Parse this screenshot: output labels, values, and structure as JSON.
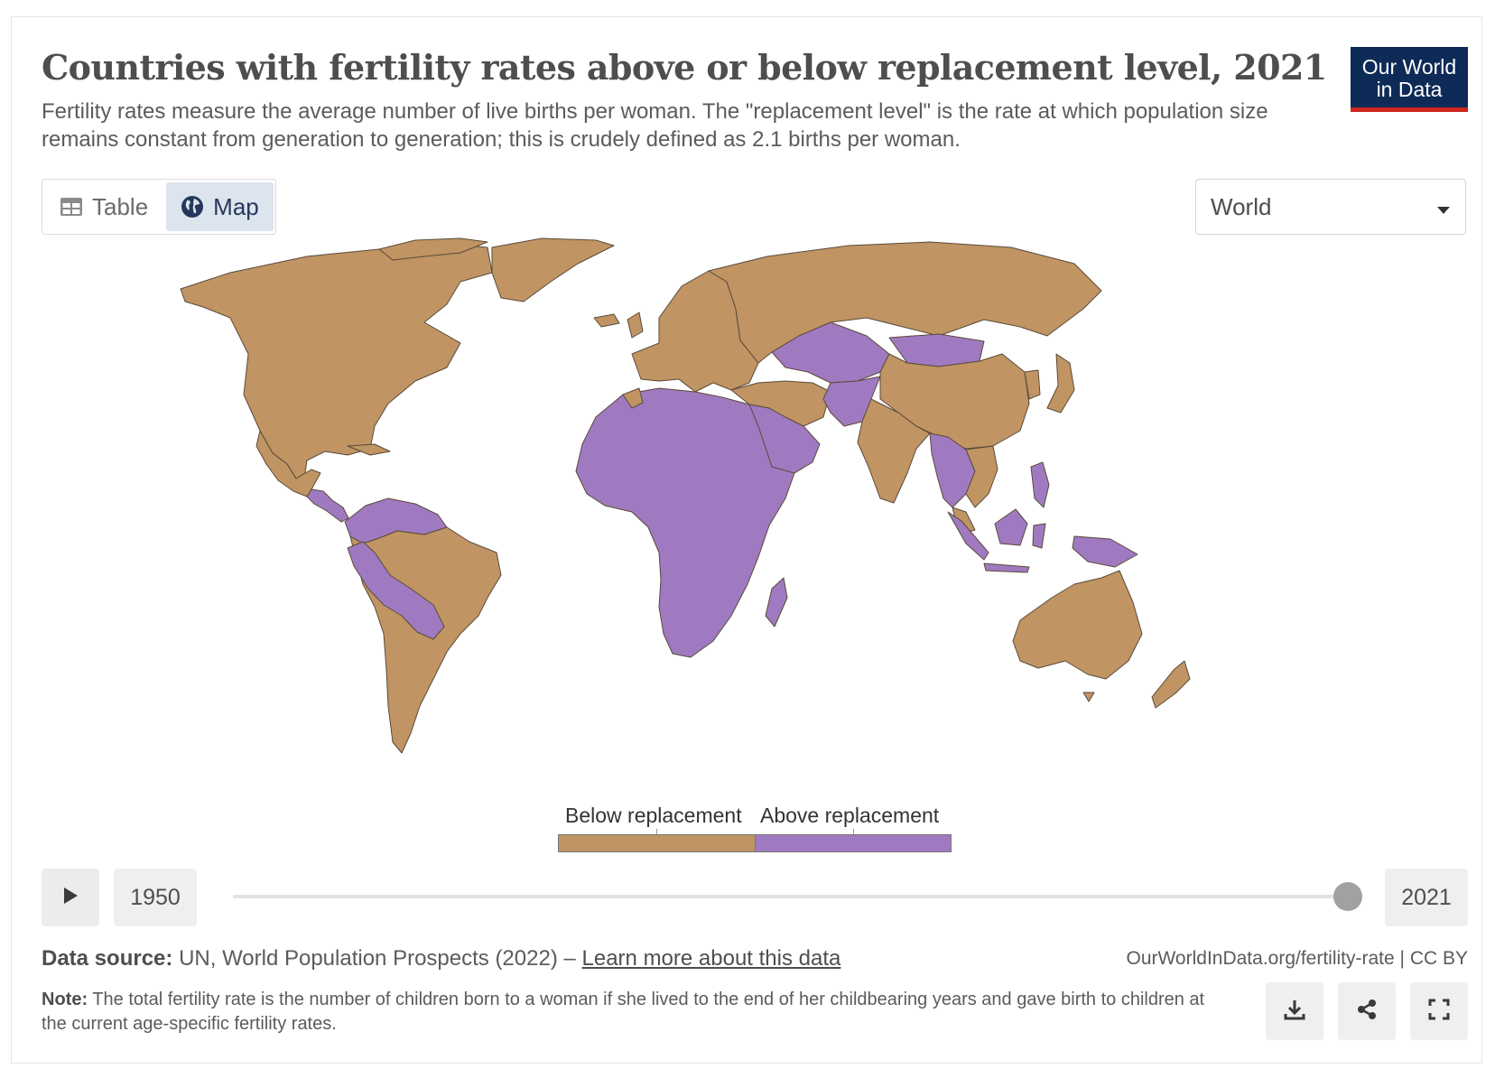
{
  "header": {
    "title": "Countries with fertility rates above or below replacement level, 2021",
    "subtitle": "Fertility rates measure the average number of live births per woman. The \"replacement level\" is the rate at which population size remains constant from generation to generation; this is crudely defined as 2.1 births per woman.",
    "logo_line1": "Our World",
    "logo_line2": "in Data"
  },
  "tabs": [
    {
      "label": "Table",
      "icon": "table-icon",
      "active": false
    },
    {
      "label": "Map",
      "icon": "globe-icon",
      "active": true
    }
  ],
  "region_select": {
    "value": "World",
    "icon": "caret-down-icon"
  },
  "map": {
    "colors": {
      "below": "#c09463",
      "above": "#a07ac0",
      "border": "#5a4a3a",
      "ocean": "#ffffff"
    },
    "categories": [
      "Below replacement",
      "Above replacement"
    ],
    "above_replacement_regions": [
      "Central America",
      "Northern South America",
      "Peru",
      "Bolivia",
      "Paraguay",
      "Africa",
      "Madagascar",
      "Arabian Peninsula",
      "Central Asia",
      "Mongolia",
      "Afghanistan",
      "Pakistan",
      "Myanmar",
      "Laos",
      "Cambodia",
      "Philippines",
      "Indonesia",
      "Papua New Guinea"
    ]
  },
  "legend": {
    "below_label": "Below replacement",
    "above_label": "Above replacement"
  },
  "timeline": {
    "start_year": "1950",
    "end_year": "2021",
    "play_icon": "play-icon"
  },
  "footer": {
    "source_label": "Data source:",
    "source_text": "UN, World Population Prospects (2022) –",
    "learn_more": "Learn more about this data",
    "url": "OurWorldInData.org/fertility-rate | CC BY",
    "note_label": "Note:",
    "note_text": "The total fertility rate is the number of children born to a woman if she lived to the end of her childbearing years and gave birth to children at the current age-specific fertility rates.",
    "actions": [
      "download-icon",
      "share-icon",
      "fullscreen-icon"
    ]
  }
}
